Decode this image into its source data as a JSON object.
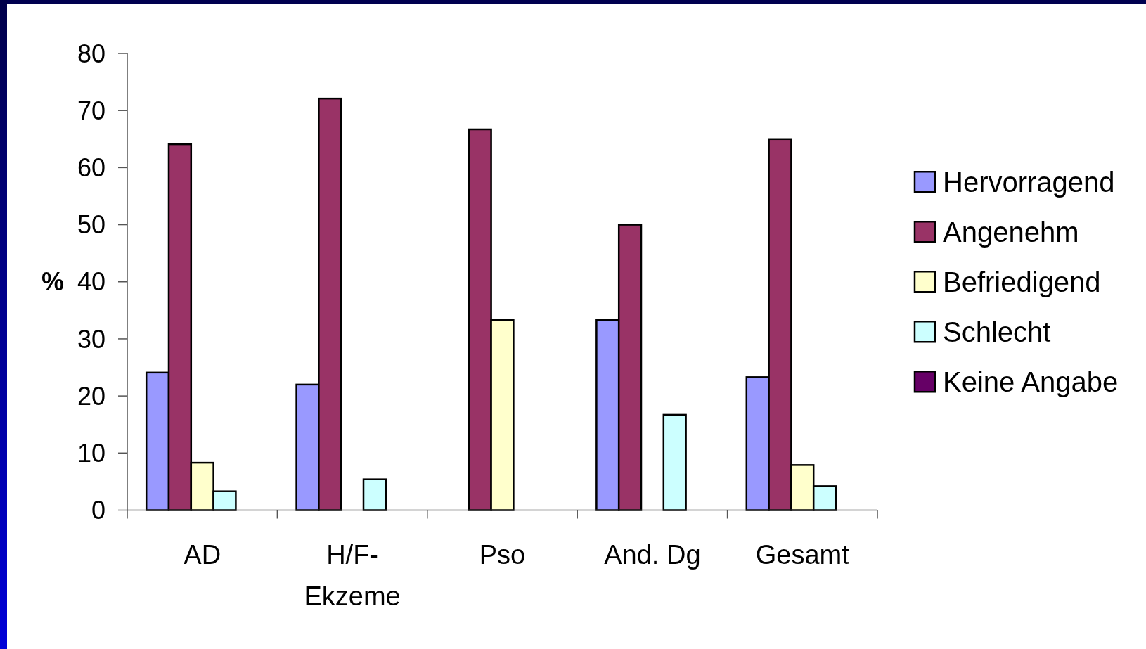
{
  "chart_data": {
    "type": "bar",
    "ylabel": "%",
    "categories": [
      "AD",
      "H/F-Ekzeme",
      "Pso",
      "And. Dg",
      "Gesamt"
    ],
    "series": [
      {
        "name": "Hervorragend",
        "color": "#9999ff",
        "values": [
          24.1,
          22.0,
          0,
          33.3,
          23.3
        ]
      },
      {
        "name": "Angenehm",
        "color": "#993366",
        "values": [
          64.1,
          72.1,
          66.7,
          50.0,
          65.0
        ]
      },
      {
        "name": "Befriedigend",
        "color": "#ffffcc",
        "values": [
          8.3,
          0,
          33.3,
          0,
          7.9
        ]
      },
      {
        "name": "Schlecht",
        "color": "#ccffff",
        "values": [
          3.3,
          5.4,
          0,
          16.7,
          4.2
        ]
      },
      {
        "name": "Keine Angabe",
        "color": "#660066",
        "values": [
          0,
          0,
          0,
          0,
          0
        ]
      }
    ],
    "ylim": [
      0,
      80
    ],
    "yticks": [
      0,
      10,
      20,
      30,
      40,
      50,
      60,
      70,
      80
    ],
    "grid": false,
    "legend": "right"
  }
}
